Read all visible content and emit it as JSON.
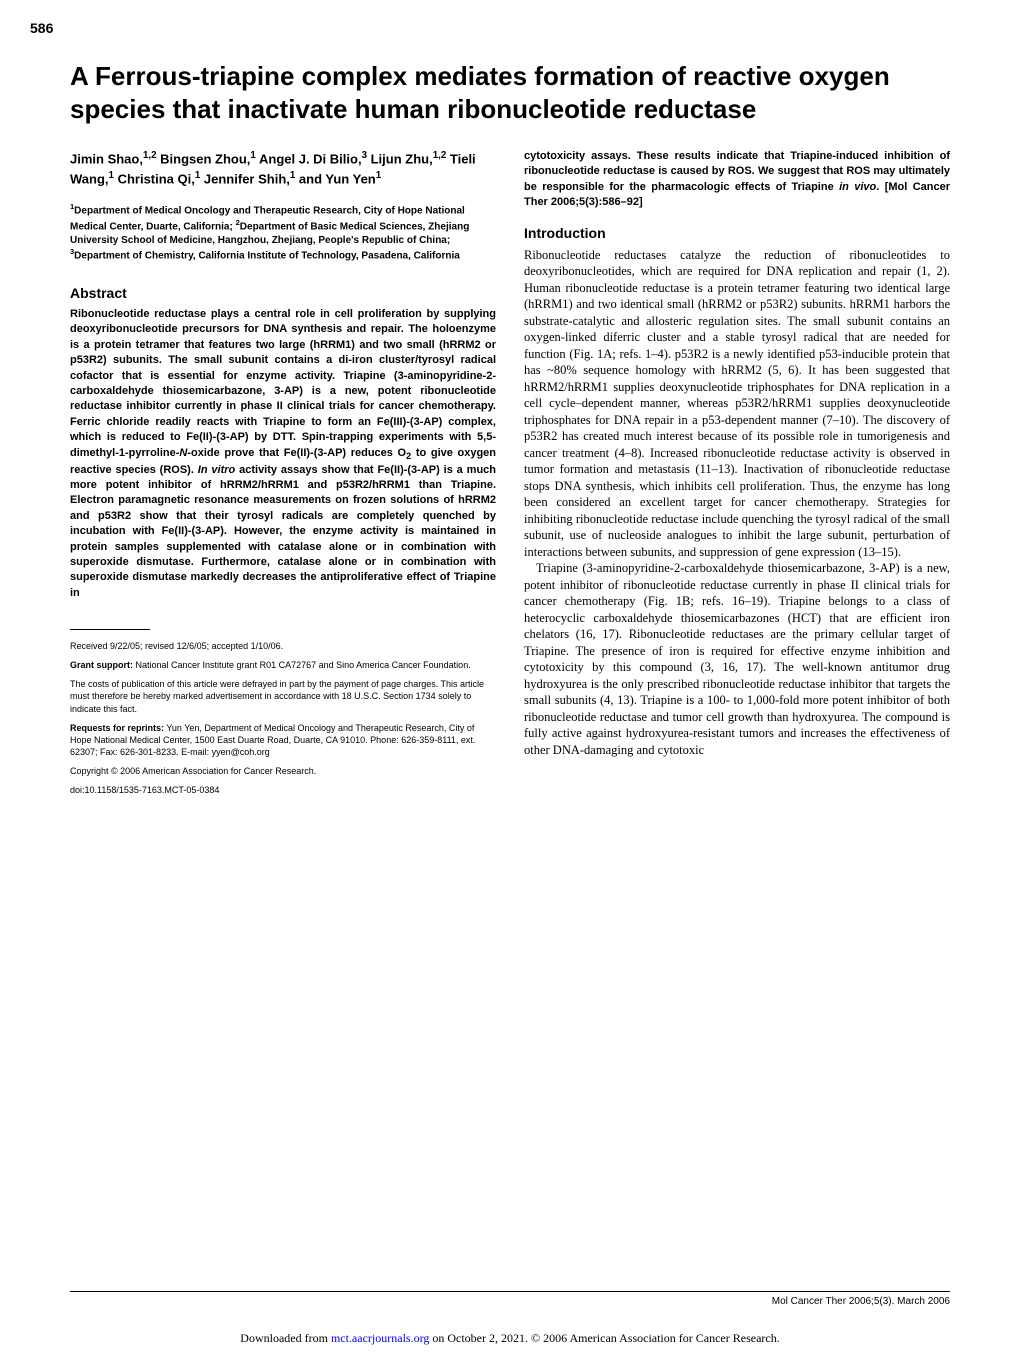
{
  "page_number": "586",
  "title": "A Ferrous-triapine complex mediates formation of reactive oxygen species that inactivate human ribonucleotide reductase",
  "authors_html": "Jimin Shao,<sup>1,2</sup> Bingsen Zhou,<sup>1</sup> Angel J. Di Bilio,<sup>3</sup> Lijun Zhu,<sup>1,2</sup> Tieli Wang,<sup>1</sup> Christina Qi,<sup>1</sup> Jennifer Shih,<sup>1</sup> and Yun Yen<sup>1</sup>",
  "affiliations_html": "<sup>1</sup>Department of Medical Oncology and Therapeutic Research, City of Hope National Medical Center, Duarte, California; <sup>2</sup>Department of Basic Medical Sciences, Zhejiang University School of Medicine, Hangzhou, Zhejiang, People's Republic of China; <sup>3</sup>Department of Chemistry, California Institute of Technology, Pasadena, California",
  "abstract_heading": "Abstract",
  "abstract_body_html": "Ribonucleotide reductase plays a central role in cell proliferation by supplying deoxyribonucleotide precursors for DNA synthesis and repair. The holoenzyme is a protein tetramer that features two large (hRRM1) and two small (hRRM2 or p53R2) subunits. The small subunit contains a di-iron cluster/tyrosyl radical cofactor that is essential for enzyme activity. Triapine (3-aminopyridine-2-carboxaldehyde thiosemicarbazone, 3-AP) is a new, potent ribonucleotide reductase inhibitor currently in phase II clinical trials for cancer chemotherapy. Ferric chloride readily reacts with Triapine to form an Fe(III)-(3-AP) complex, which is reduced to Fe(II)-(3-AP) by DTT. Spin-trapping experiments with 5,5-dimethyl-1-pyrroline-<i>N</i>-oxide prove that Fe(II)-(3-AP) reduces O<sub>2</sub> to give oxygen reactive species (ROS). <i>In vitro</i> activity assays show that Fe(II)-(3-AP) is a much more potent inhibitor of hRRM2/hRRM1 and p53R2/hRRM1 than Triapine. Electron paramagnetic resonance measurements on frozen solutions of hRRM2 and p53R2 show that their tyrosyl radicals are completely quenched by incubation with Fe(II)-(3-AP). However, the enzyme activity is maintained in protein samples supplemented with catalase alone or in combination with superoxide dismutase. Furthermore, catalase alone or in combination with superoxide dismutase markedly decreases the antiproliferative effect of Triapine in",
  "continuation_html": "cytotoxicity assays. These results indicate that Triapine-induced inhibition of ribonucleotide reductase is caused by ROS. We suggest that ROS may ultimately be responsible for the pharmacologic effects of Triapine <i>in vivo</i>. [Mol Cancer Ther 2006;5(3):586–92]",
  "introduction_heading": "Introduction",
  "intro_p1": "Ribonucleotide reductases catalyze the reduction of ribonucleotides to deoxyribonucleotides, which are required for DNA replication and repair (1, 2). Human ribonucleotide reductase is a protein tetramer featuring two identical large (hRRM1) and two identical small (hRRM2 or p53R2) subunits. hRRM1 harbors the substrate-catalytic and allosteric regulation sites. The small subunit contains an oxygen-linked diferric cluster and a stable tyrosyl radical that are needed for function (Fig. 1A; refs. 1–4). p53R2 is a newly identified p53-inducible protein that has ~80% sequence homology with hRRM2 (5, 6). It has been suggested that hRRM2/hRRM1 supplies deoxynucleotide triphosphates for DNA replication in a cell cycle–dependent manner, whereas p53R2/hRRM1 supplies deoxynucleotide triphosphates for DNA repair in a p53-dependent manner (7–10). The discovery of p53R2 has created much interest because of its possible role in tumorigenesis and cancer treatment (4–8). Increased ribonucleotide reductase activity is observed in tumor formation and metastasis (11–13). Inactivation of ribonucleotide reductase stops DNA synthesis, which inhibits cell proliferation. Thus, the enzyme has long been considered an excellent target for cancer chemotherapy. Strategies for inhibiting ribonucleotide reductase include quenching the tyrosyl radical of the small subunit, use of nucleoside analogues to inhibit the large subunit, perturbation of interactions between subunits, and suppression of gene expression (13–15).",
  "intro_p2": "Triapine (3-aminopyridine-2-carboxaldehyde thiosemicarbazone, 3-AP) is a new, potent inhibitor of ribonucleotide reductase currently in phase II clinical trials for cancer chemotherapy (Fig. 1B; refs. 16–19). Triapine belongs to a class of heterocyclic carboxaldehyde thiosemicarbazones (HCT) that are efficient iron chelators (16, 17). Ribonucleotide reductases are the primary cellular target of Triapine. The presence of iron is required for effective enzyme inhibition and cytotoxicity by this compound (3, 16, 17). The well-known antitumor drug hydroxyurea is the only prescribed ribonucleotide reductase inhibitor that targets the small subunits (4, 13). Triapine is a 100- to 1,000-fold more potent inhibitor of both ribonucleotide reductase and tumor cell growth than hydroxyurea. The compound is fully active against hydroxyurea-resistant tumors and increases the effectiveness of other DNA-damaging and cytotoxic",
  "footnotes": {
    "received": "Received 9/22/05; revised 12/6/05; accepted 1/10/06.",
    "grant_html": "<b>Grant support:</b> National Cancer Institute grant R01 CA72767 and Sino America Cancer Foundation.",
    "costs": "The costs of publication of this article were defrayed in part by the payment of page charges. This article must therefore be hereby marked advertisement in accordance with 18 U.S.C. Section 1734 solely to indicate this fact.",
    "reprints_html": "<b>Requests for reprints:</b> Yun Yen, Department of Medical Oncology and Therapeutic Research, City of Hope National Medical Center, 1500 East Duarte Road, Duarte, CA 91010. Phone: 626-359-8111, ext. 62307; Fax: 626-301-8233. E-mail: yyen@coh.org",
    "copyright": "Copyright © 2006 American Association for Cancer Research.",
    "doi": "doi:10.1158/1535-7163.MCT-05-0384"
  },
  "footer_journal": "Mol Cancer Ther 2006;5(3). March 2006",
  "download_line_html": "Downloaded from <span class='link'>mct.aacrjournals.org</span> on October 2, 2021. © 2006 American Association for Cancer Research."
}
